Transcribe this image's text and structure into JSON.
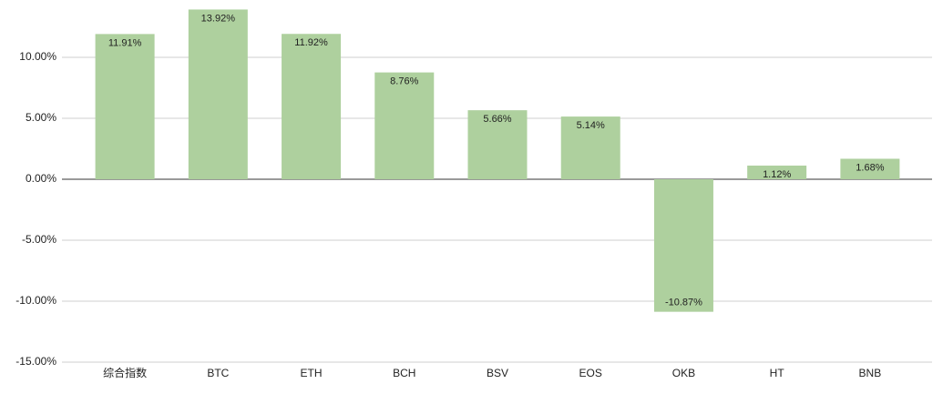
{
  "chart_data": {
    "type": "bar",
    "categories": [
      "综合指数",
      "BTC",
      "ETH",
      "BCH",
      "BSV",
      "EOS",
      "OKB",
      "HT",
      "BNB"
    ],
    "values": [
      11.91,
      13.92,
      11.92,
      8.76,
      5.66,
      5.14,
      -10.87,
      1.12,
      1.68
    ],
    "value_labels": [
      "11.91%",
      "13.92%",
      "11.92%",
      "8.76%",
      "5.66%",
      "5.14%",
      "-10.87%",
      "1.12%",
      "1.68%"
    ],
    "color": "#aed09e",
    "ylim": [
      -15,
      14.7
    ],
    "yticks": [
      {
        "value": -15,
        "label": "-15.00%"
      },
      {
        "value": -10,
        "label": "-10.00%"
      },
      {
        "value": -5,
        "label": "-5.00%"
      },
      {
        "value": 0,
        "label": "0.00%"
      },
      {
        "value": 5,
        "label": "5.00%"
      },
      {
        "value": 10,
        "label": "10.00%"
      }
    ],
    "grid": true
  }
}
